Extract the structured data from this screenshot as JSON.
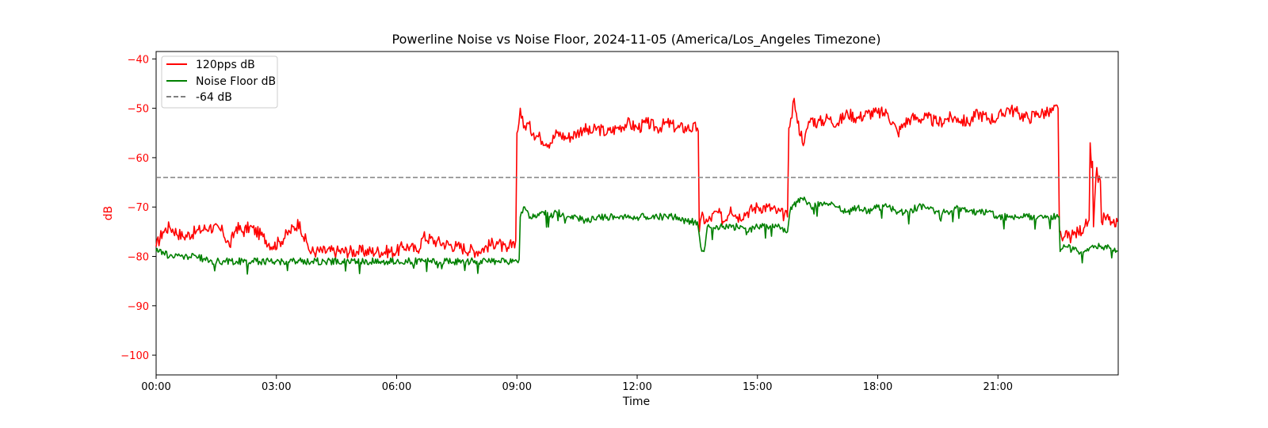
{
  "chart_data": {
    "type": "line",
    "title": "Powerline Noise vs Noise Floor, 2024-11-05 (America/Los_Angeles Timezone)",
    "xlabel": "Time",
    "ylabel": "dB",
    "xlim_hours": [
      0,
      24
    ],
    "ylim": [
      -104,
      -38.5
    ],
    "xticks": [
      {
        "h": 0,
        "label": "00:00"
      },
      {
        "h": 3,
        "label": "03:00"
      },
      {
        "h": 6,
        "label": "06:00"
      },
      {
        "h": 9,
        "label": "09:00"
      },
      {
        "h": 12,
        "label": "12:00"
      },
      {
        "h": 15,
        "label": "15:00"
      },
      {
        "h": 18,
        "label": "18:00"
      },
      {
        "h": 21,
        "label": "21:00"
      }
    ],
    "yticks": [
      {
        "v": -40,
        "label": "−40"
      },
      {
        "v": -50,
        "label": "−50"
      },
      {
        "v": -60,
        "label": "−60"
      },
      {
        "v": -70,
        "label": "−70"
      },
      {
        "v": -80,
        "label": "−80"
      },
      {
        "v": -90,
        "label": "−90"
      },
      {
        "v": -100,
        "label": "−100"
      }
    ],
    "ylabel_color": "#ff0000",
    "grid": false,
    "legend_position": "upper-left",
    "series": [
      {
        "name": "120pps dB",
        "color": "#ff0000",
        "style": "solid",
        "x": [
          "00:00",
          "00:10",
          "00:20",
          "00:40",
          "01:00",
          "01:20",
          "01:40",
          "01:50",
          "02:00",
          "02:10",
          "02:20",
          "02:40",
          "02:55",
          "03:05",
          "03:20",
          "03:35",
          "03:40",
          "03:45",
          "03:50",
          "04:00",
          "04:30",
          "05:00",
          "05:30",
          "06:00",
          "06:10",
          "06:20",
          "06:30",
          "06:40",
          "07:00",
          "07:30",
          "08:00",
          "08:30",
          "08:45",
          "08:55",
          "09:00",
          "09:03",
          "09:05",
          "09:10",
          "09:15",
          "09:25",
          "09:35",
          "09:50",
          "10:00",
          "10:15",
          "10:30",
          "10:40",
          "10:50",
          "11:00",
          "11:15",
          "11:30",
          "11:45",
          "12:00",
          "12:15",
          "12:30",
          "12:45",
          "13:00",
          "13:15",
          "13:30",
          "13:33",
          "13:36",
          "13:45",
          "14:00",
          "14:10",
          "14:20",
          "14:30",
          "14:45",
          "15:00",
          "15:15",
          "15:30",
          "15:45",
          "15:47",
          "15:50",
          "15:55",
          "16:00",
          "16:10",
          "16:15",
          "16:20",
          "16:30",
          "16:45",
          "17:00",
          "17:15",
          "17:30",
          "17:45",
          "18:00",
          "18:15",
          "18:30",
          "18:40",
          "18:50",
          "19:00",
          "19:15",
          "19:30",
          "19:45",
          "20:00",
          "20:15",
          "20:30",
          "20:45",
          "21:00",
          "21:15",
          "21:30",
          "21:45",
          "22:00",
          "22:15",
          "22:30",
          "22:32",
          "22:35",
          "22:40",
          "22:50",
          "23:00",
          "23:10",
          "23:15",
          "23:18",
          "23:20",
          "23:23",
          "23:25",
          "23:28",
          "23:30",
          "23:35",
          "23:40",
          "23:50",
          "23:55",
          "23:59"
        ],
        "y": [
          -78,
          -75,
          -74,
          -76,
          -75,
          -74,
          -75,
          -78,
          -74,
          -75,
          -74,
          -76,
          -78,
          -77,
          -75,
          -73,
          -76,
          -77,
          -79,
          -79,
          -79,
          -79,
          -79,
          -79,
          -78,
          -78,
          -79,
          -76,
          -77,
          -78,
          -79,
          -77,
          -79,
          -77,
          -55,
          -53,
          -50,
          -54,
          -53,
          -55,
          -56,
          -57,
          -55,
          -56,
          -55,
          -54,
          -55,
          -54,
          -55,
          -54,
          -53,
          -54,
          -53,
          -54,
          -53,
          -54,
          -54,
          -54,
          -75,
          -72,
          -73,
          -71,
          -73,
          -70,
          -72,
          -71,
          -70,
          -70,
          -71,
          -72,
          -54,
          -52,
          -48,
          -53,
          -57,
          -54,
          -52,
          -53,
          -52,
          -53,
          -51,
          -52,
          -51,
          -51,
          -51,
          -55,
          -53,
          -52,
          -52,
          -52,
          -53,
          -52,
          -52,
          -53,
          -51,
          -52,
          -52,
          -50,
          -51,
          -52,
          -51,
          -51,
          -50,
          -75,
          -76,
          -76,
          -76,
          -75,
          -74,
          -73,
          -57,
          -62,
          -74,
          -68,
          -62,
          -65,
          -73,
          -72,
          -73,
          -74,
          -73
        ],
        "y_spikes_note": ""
      },
      {
        "name": "Noise Floor dB",
        "color": "#008000",
        "style": "solid",
        "x": [
          "00:00",
          "00:10",
          "00:20",
          "00:40",
          "01:00",
          "01:20",
          "01:40",
          "02:00",
          "02:30",
          "03:00",
          "04:00",
          "05:00",
          "06:00",
          "07:00",
          "08:00",
          "08:30",
          "08:55",
          "09:00",
          "09:05",
          "09:10",
          "09:20",
          "09:30",
          "09:40",
          "09:50",
          "10:00",
          "10:15",
          "10:30",
          "10:45",
          "11:00",
          "11:15",
          "11:30",
          "11:45",
          "12:00",
          "12:15",
          "12:30",
          "12:45",
          "13:00",
          "13:15",
          "13:30",
          "13:35",
          "13:40",
          "13:45",
          "14:00",
          "14:15",
          "14:30",
          "14:45",
          "15:00",
          "15:15",
          "15:30",
          "15:45",
          "15:50",
          "16:00",
          "16:10",
          "16:20",
          "16:40",
          "17:00",
          "17:15",
          "17:30",
          "17:45",
          "18:00",
          "18:15",
          "18:30",
          "18:45",
          "19:00",
          "19:15",
          "19:30",
          "19:45",
          "20:00",
          "20:15",
          "20:30",
          "20:45",
          "21:00",
          "21:15",
          "21:30",
          "21:45",
          "22:00",
          "22:15",
          "22:30",
          "22:33",
          "22:40",
          "23:00",
          "23:20",
          "23:40",
          "23:59"
        ],
        "y": [
          -79,
          -79,
          -80,
          -80,
          -80,
          -81,
          -81,
          -81,
          -81,
          -81,
          -81,
          -81,
          -81,
          -81,
          -81,
          -81,
          -81,
          -81,
          -72,
          -70,
          -72,
          -72,
          -71,
          -72,
          -71,
          -72,
          -72,
          -73,
          -72,
          -72,
          -72,
          -72,
          -72,
          -72,
          -72,
          -72,
          -72,
          -73,
          -73,
          -78,
          -79,
          -74,
          -74,
          -74,
          -74,
          -75,
          -74,
          -74,
          -74,
          -75,
          -70,
          -69,
          -68,
          -70,
          -69,
          -70,
          -71,
          -70,
          -71,
          -70,
          -70,
          -71,
          -71,
          -70,
          -70,
          -71,
          -71,
          -70,
          -71,
          -71,
          -71,
          -72,
          -72,
          -72,
          -72,
          -72,
          -72,
          -72,
          -79,
          -78,
          -79,
          -78,
          -78,
          -79
        ]
      },
      {
        "name": "-64 dB",
        "color": "#808080",
        "style": "dashed",
        "constant": -64
      }
    ]
  }
}
